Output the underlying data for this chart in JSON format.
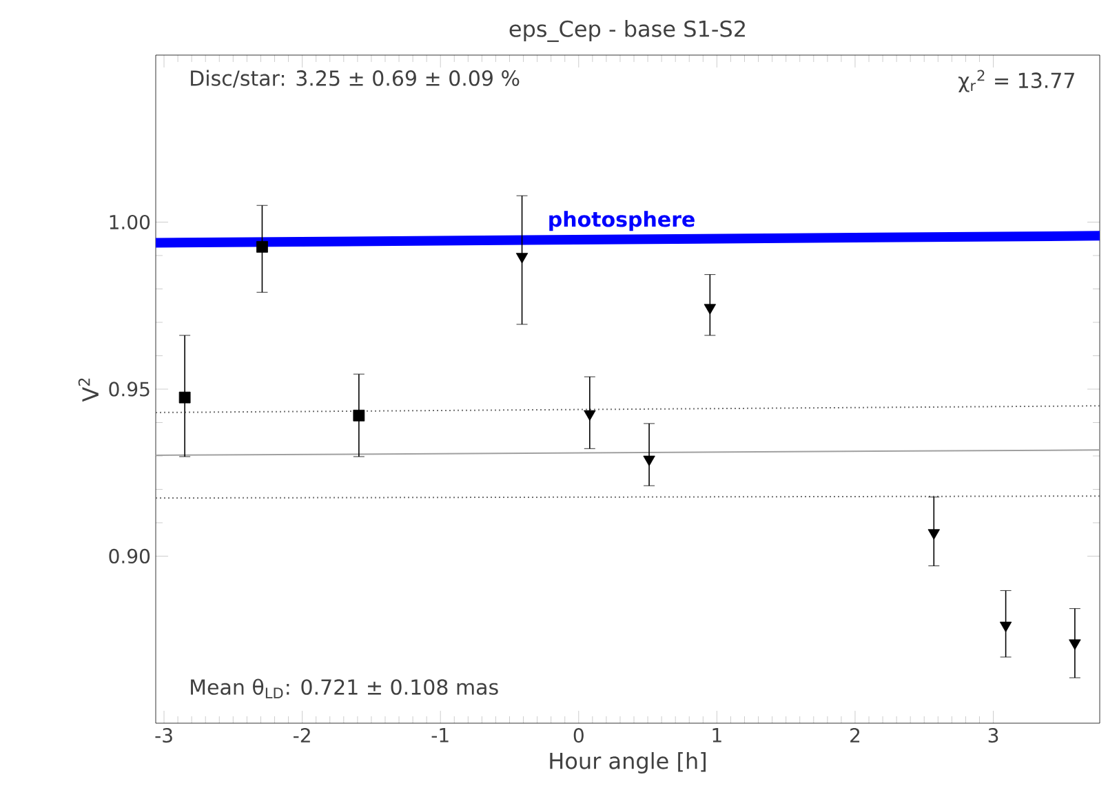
{
  "chart_data": {
    "type": "scatter",
    "title": "eps_Cep - base S1-S2",
    "xlabel": "Hour angle [h]",
    "ylabel": "V$^{2}$",
    "xlim": [
      -3.06,
      3.77
    ],
    "ylim": [
      0.85,
      1.05
    ],
    "xticks": [
      -3,
      -2,
      -1,
      0,
      1,
      2,
      3
    ],
    "yticks": [
      {
        "value": 0.9,
        "label": "0.90"
      },
      {
        "value": 0.95,
        "label": "0.95"
      },
      {
        "value": 1.0,
        "label": "1.00"
      }
    ],
    "annotations": [
      "Disc/star:  3.25 ± 0.69 ± 0.09 %",
      "χ$_{r}$$^{2}$ = 13.77",
      "Mean θ$_{LD}$: 0.721 ± 0.108 mas"
    ],
    "series": [
      {
        "type": "line",
        "name": "photosphere",
        "color": "#0000ff",
        "marker": "none",
        "line_style": "solid",
        "x": [
          -3.06,
          3.77
        ],
        "values": [
          0.9938,
          0.9959
        ]
      },
      {
        "type": "line",
        "color": "#a0a0a0",
        "marker": "none",
        "line_style": "solid",
        "x": [
          -3.06,
          3.77
        ],
        "values": [
          0.9302,
          0.9318
        ]
      },
      {
        "type": "line",
        "color": "#707070",
        "marker": "none",
        "line_style": "dotted",
        "x": [
          -3.06,
          3.77
        ],
        "values": [
          0.943,
          0.945
        ]
      },
      {
        "type": "line",
        "color": "#707070",
        "marker": "none",
        "line_style": "dotted",
        "x": [
          -3.06,
          3.77
        ],
        "values": [
          0.9174,
          0.918
        ]
      },
      {
        "type": "scatter",
        "color": "#000000",
        "marker": "square",
        "x": [
          -2.85,
          -2.29,
          -1.59
        ],
        "values": [
          0.9475,
          0.9926,
          0.9421
        ],
        "errors": [
          [
            0.9298,
            0.9661
          ],
          [
            0.979,
            1.005
          ],
          [
            0.9298,
            0.9545
          ]
        ]
      },
      {
        "type": "scatter",
        "color": "#000000",
        "marker": "triangle",
        "x": [
          -0.41,
          0.08,
          0.51,
          0.95,
          2.57,
          3.09,
          3.59
        ],
        "values": [
          0.9897,
          0.9426,
          0.929,
          0.9744,
          0.907,
          0.8793,
          0.874
        ],
        "errors": [
          [
            0.9694,
            1.0079
          ],
          [
            0.9322,
            0.9537
          ],
          [
            0.9211,
            0.9397
          ],
          [
            0.9661,
            0.9843
          ],
          [
            0.8971,
            0.9177
          ],
          [
            0.8698,
            0.8897
          ],
          [
            0.8636,
            0.8843
          ]
        ]
      }
    ]
  }
}
